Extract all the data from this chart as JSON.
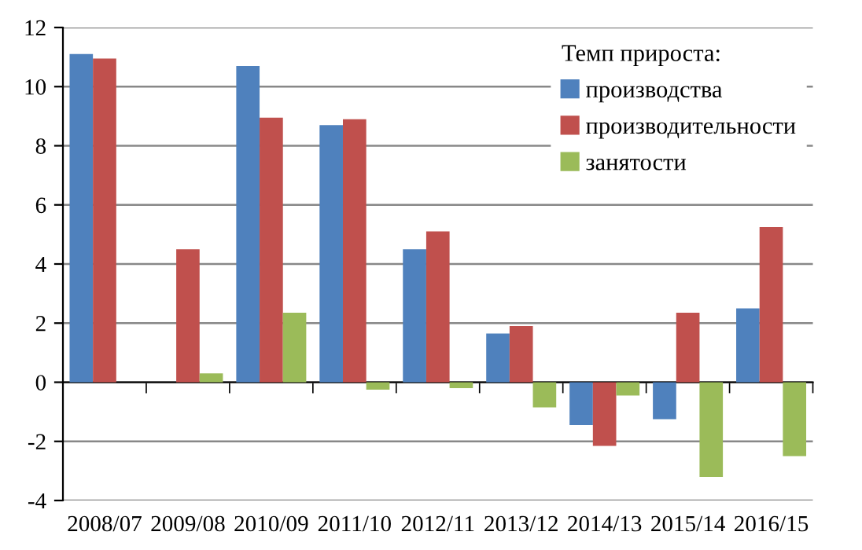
{
  "chart_data": {
    "type": "bar",
    "categories": [
      "2008/07",
      "2009/08",
      "2010/09",
      "2011/10",
      "2012/11",
      "2013/12",
      "2014/13",
      "2015/14",
      "2016/15"
    ],
    "series": [
      {
        "name": "производства",
        "color": "#4f81bd",
        "values": [
          11.1,
          0,
          10.7,
          8.7,
          4.5,
          1.65,
          -1.45,
          -1.25,
          2.5
        ]
      },
      {
        "name": "производительности",
        "color": "#c0504d",
        "values": [
          10.95,
          4.5,
          8.95,
          8.9,
          5.1,
          1.9,
          -2.15,
          2.35,
          5.25
        ]
      },
      {
        "name": "занятости",
        "color": "#9bbb59",
        "values": [
          0,
          0.3,
          2.35,
          -0.25,
          -0.2,
          -0.85,
          -0.45,
          -3.2,
          -2.5
        ]
      }
    ],
    "legend_title": "Темп прироста:",
    "legend": "top right",
    "ylim": [
      -4,
      12
    ],
    "yticks": [
      -4,
      -2,
      0,
      2,
      4,
      6,
      8,
      10,
      12
    ],
    "grid": "y"
  }
}
